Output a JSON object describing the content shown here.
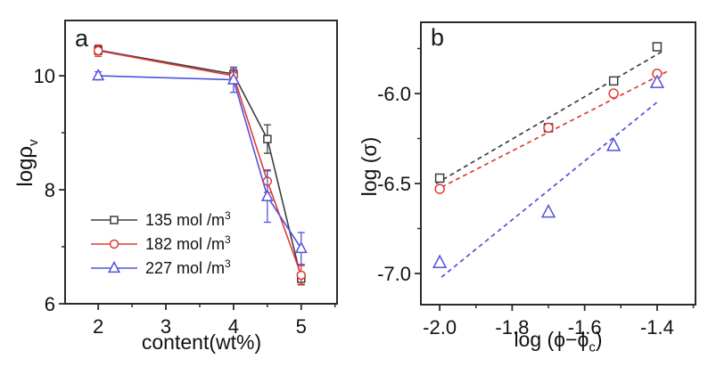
{
  "figure": {
    "bg": "#ffffff",
    "frame_color": "#2b2b2b",
    "text_color": "#111111"
  },
  "labels": {
    "a_letter": "a",
    "b_letter": "b",
    "a_xlabel": "content(wt%)",
    "a_ylabel_main": "logρ",
    "a_ylabel_sub": "v",
    "b_ylabel": "log (σ)",
    "b_xlabel_pre": "log (ϕ−ϕ",
    "b_xlabel_sub": "c",
    "b_xlabel_post": ")"
  },
  "chart_data": [
    {
      "id": "a",
      "type": "line",
      "panel_letter": "a",
      "xlabel": "content(wt%)",
      "ylabel": "log ρv",
      "xlim": [
        1.51,
        5.53
      ],
      "ylim": [
        6,
        10.97
      ],
      "grid": false,
      "connect": true,
      "xticks_major": [
        2,
        3,
        4,
        5
      ],
      "xtick_labels": [
        "2",
        "3",
        "4",
        "5"
      ],
      "xticks_minor": [
        2.5,
        3.5,
        4.5,
        5.5
      ],
      "yticks_major": [
        6,
        8,
        10
      ],
      "ytick_labels": [
        "6",
        "8",
        "10"
      ],
      "yticks_minor": [
        7,
        9
      ],
      "legend_position": "lower-left-inside",
      "series": [
        {
          "name": "135 mol /m3",
          "label": "135 mol /m",
          "label_sup": "3",
          "marker": "square",
          "size": 8,
          "color": "#3d3d3d",
          "x": [
            2,
            4,
            4.5,
            5
          ],
          "y": [
            10.45,
            10.03,
            8.89,
            6.44
          ],
          "yerr": [
            0.08,
            0.12,
            0.25,
            0.1
          ]
        },
        {
          "name": "182 mol /m3",
          "label": "182 mol /m",
          "label_sup": "3",
          "marker": "circle",
          "size": 9,
          "color": "#e03a35",
          "x": [
            2,
            4,
            4.5,
            5
          ],
          "y": [
            10.44,
            10.0,
            8.15,
            6.5
          ],
          "yerr": [
            0.1,
            0.12,
            0.2,
            0.17
          ]
        },
        {
          "name": "227 mol /m3",
          "label": "227 mol /m",
          "label_sup": "3",
          "marker": "triangle",
          "size": 10,
          "color": "#5151dd",
          "x": [
            2,
            4,
            4.5,
            5
          ],
          "y": [
            10.0,
            9.93,
            7.88,
            6.97
          ],
          "yerr": [
            0.07,
            0.22,
            0.45,
            0.28
          ]
        }
      ]
    },
    {
      "id": "b",
      "type": "scatter",
      "panel_letter": "b",
      "xlabel": "log (ϕ−ϕc)",
      "ylabel": "log (σ)",
      "xlim": [
        -2.052,
        -1.294
      ],
      "ylim": [
        -7.173,
        -5.604
      ],
      "grid": false,
      "connect": false,
      "xticks_major": [
        -2.0,
        -1.8,
        -1.6,
        -1.4
      ],
      "xtick_labels": [
        "-2.0",
        "-1.8",
        "-1.6",
        "-1.4"
      ],
      "xticks_minor": [
        -1.9,
        -1.7,
        -1.5,
        -1.3
      ],
      "yticks_major": [
        -7.0,
        -6.5,
        -6.0
      ],
      "ytick_labels": [
        "-7.0",
        "-6.5",
        "-6.0"
      ],
      "yticks_minor": [
        -6.75,
        -6.25,
        -5.75
      ],
      "series": [
        {
          "name": "135 mol /m3",
          "marker": "square",
          "size": 9,
          "color": "#3d3d3d",
          "x": [
            -2.0,
            -1.7,
            -1.52,
            -1.4
          ],
          "y": [
            -6.47,
            -6.19,
            -5.93,
            -5.74
          ]
        },
        {
          "name": "182 mol /m3",
          "marker": "circle",
          "size": 10,
          "color": "#e03a35",
          "x": [
            -2.0,
            -1.7,
            -1.52,
            -1.4
          ],
          "y": [
            -6.53,
            -6.19,
            -6.0,
            -5.89
          ]
        },
        {
          "name": "227 mol /m3",
          "marker": "triangle",
          "size": 12,
          "color": "#5151dd",
          "x": [
            -2.0,
            -1.7,
            -1.52,
            -1.4
          ],
          "y": [
            -6.94,
            -6.66,
            -6.29,
            -5.94
          ]
        }
      ],
      "fit_lines": [
        {
          "series": "135 mol /m3",
          "color": "#3d3d3d",
          "x": [
            -2.01,
            -1.385
          ],
          "y": [
            -6.5,
            -5.765
          ]
        },
        {
          "series": "182 mol /m3",
          "color": "#e03a35",
          "x": [
            -1.995,
            -1.37
          ],
          "y": [
            -6.52,
            -5.875
          ]
        },
        {
          "series": "227 mol /m3",
          "color": "#5151dd",
          "x": [
            -1.995,
            -1.395
          ],
          "y": [
            -7.02,
            -6.04
          ]
        }
      ]
    }
  ]
}
